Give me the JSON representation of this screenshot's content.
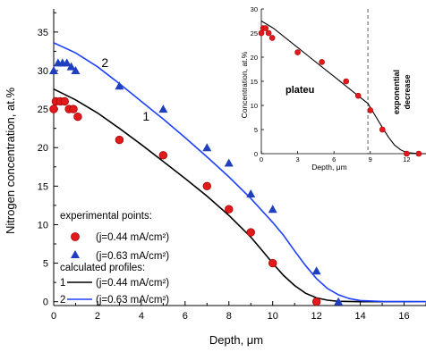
{
  "colors": {
    "exp1": "#e31a1c",
    "exp2": "#1f3fbf",
    "calc1": "#000000",
    "calc2": "#2040ff",
    "axis": "#000000"
  },
  "chart_data": [
    {
      "type": "scatter",
      "title": "",
      "xlabel": "Depth, μm",
      "ylabel": "Nitrogen concentration, at.%",
      "xlim": [
        0,
        17
      ],
      "ylim": [
        -0.5,
        38
      ],
      "xticks": [
        "0",
        "2",
        "4",
        "6",
        "8",
        "10",
        "12",
        "14",
        "16"
      ],
      "yticks": [
        "0",
        "5",
        "10",
        "15",
        "20",
        "25",
        "30",
        "35"
      ],
      "series": [
        {
          "name": "(j=0.44 mA/cm²)",
          "kind": "points",
          "marker": "circle",
          "color": "#e31a1c",
          "points": [
            [
              0,
              25
            ],
            [
              0.1,
              26
            ],
            [
              0.3,
              26
            ],
            [
              0.5,
              26
            ],
            [
              0.7,
              25
            ],
            [
              0.9,
              25
            ],
            [
              1.1,
              24
            ],
            [
              3,
              21
            ],
            [
              5,
              19
            ],
            [
              7,
              15
            ],
            [
              8,
              12
            ],
            [
              9,
              9
            ],
            [
              10,
              5
            ],
            [
              12,
              0
            ]
          ]
        },
        {
          "name": "(j=0.63 mA/cm²)",
          "kind": "points",
          "marker": "triangle",
          "color": "#1f3fbf",
          "points": [
            [
              0,
              30
            ],
            [
              0.2,
              31
            ],
            [
              0.4,
              31
            ],
            [
              0.6,
              31
            ],
            [
              0.8,
              30.5
            ],
            [
              1,
              30
            ],
            [
              3,
              28
            ],
            [
              5,
              25
            ],
            [
              7,
              20
            ],
            [
              8,
              18
            ],
            [
              9,
              14
            ],
            [
              10,
              12
            ],
            [
              12,
              4
            ],
            [
              13,
              0
            ]
          ]
        },
        {
          "name": "(j=0.44 mA/cm²)",
          "kind": "line",
          "color": "#000000",
          "points": [
            [
              0,
              27.6
            ],
            [
              1,
              26.2
            ],
            [
              2,
              24.5
            ],
            [
              3,
              22.5
            ],
            [
              4,
              20.4
            ],
            [
              5,
              18.2
            ],
            [
              6,
              16
            ],
            [
              7,
              13.7
            ],
            [
              8,
              11.2
            ],
            [
              9,
              8.4
            ],
            [
              9.5,
              6.7
            ],
            [
              10,
              5
            ],
            [
              10.5,
              3.4
            ],
            [
              11,
              2.1
            ],
            [
              11.5,
              1.1
            ],
            [
              12,
              0.5
            ],
            [
              12.5,
              0.2
            ],
            [
              13,
              0.05
            ],
            [
              14,
              0
            ],
            [
              17,
              0
            ]
          ]
        },
        {
          "name": "(j=0.63 mA/cm²)",
          "kind": "line",
          "color": "#2040ff",
          "points": [
            [
              0,
              33.6
            ],
            [
              1,
              32.3
            ],
            [
              2,
              30.5
            ],
            [
              3,
              28.3
            ],
            [
              4,
              26
            ],
            [
              5,
              23.7
            ],
            [
              6,
              21.3
            ],
            [
              7,
              18.8
            ],
            [
              8,
              16.2
            ],
            [
              9,
              13.4
            ],
            [
              10,
              10.3
            ],
            [
              10.5,
              8.6
            ],
            [
              11,
              6.6
            ],
            [
              11.5,
              4.7
            ],
            [
              12,
              3
            ],
            [
              12.5,
              1.7
            ],
            [
              13,
              0.9
            ],
            [
              13.5,
              0.4
            ],
            [
              14,
              0.15
            ],
            [
              15,
              0.03
            ],
            [
              17,
              0
            ]
          ]
        }
      ],
      "curve_labels": [
        {
          "text": "1",
          "x": 3,
          "y": 23.5
        },
        {
          "text": "2",
          "x": 3,
          "y": 30
        }
      ],
      "legend": {
        "placement": "bottom-left",
        "header_exp": "experimental points:",
        "exp1": "(j=0.44 mA/cm²)",
        "exp2": "(j=0.63 mA/cm²)",
        "header_calc": "calculated profiles:",
        "calc1_num": "1",
        "calc1": "(j=0.44 mA/cm²)",
        "calc2_num": "2",
        "calc2": "(j=0.63 mA/cm²)"
      }
    },
    {
      "type": "scatter",
      "title": "",
      "xlabel": "Depth, μm",
      "ylabel": "Concentration, at.%",
      "xlim": [
        0,
        13.6
      ],
      "ylim": [
        0,
        30
      ],
      "xticks": [
        "0",
        "3",
        "6",
        "9",
        "12"
      ],
      "yticks": [
        "0",
        "5",
        "10",
        "15",
        "20",
        "25",
        "30"
      ],
      "series": [
        {
          "kind": "points",
          "marker": "circle",
          "color": "#e31a1c",
          "points": [
            [
              0,
              25
            ],
            [
              0.15,
              26
            ],
            [
              0.35,
              26
            ],
            [
              0.6,
              25
            ],
            [
              0.9,
              24
            ],
            [
              3,
              21
            ],
            [
              5,
              19
            ],
            [
              7,
              15
            ],
            [
              8,
              12
            ],
            [
              9,
              9
            ],
            [
              10,
              5
            ],
            [
              12,
              0
            ],
            [
              13,
              0
            ]
          ]
        },
        {
          "kind": "line",
          "color": "#000000",
          "points": [
            [
              0,
              27.5
            ],
            [
              1,
              26
            ],
            [
              2,
              24
            ],
            [
              3,
              22
            ],
            [
              4,
              20
            ],
            [
              5,
              18
            ],
            [
              6,
              16
            ],
            [
              7,
              14
            ],
            [
              8,
              12
            ],
            [
              8.8,
              10.4
            ],
            [
              9.5,
              7.5
            ],
            [
              10,
              5.4
            ],
            [
              10.5,
              3.4
            ],
            [
              11,
              1.8
            ],
            [
              11.5,
              0.8
            ],
            [
              12,
              0.25
            ],
            [
              13,
              0
            ],
            [
              13.6,
              0
            ]
          ]
        }
      ],
      "divider_x": 8.8,
      "annotations": {
        "plateau": "plateu",
        "exp_line1": "exponential",
        "exp_line2": "decrease"
      }
    }
  ]
}
